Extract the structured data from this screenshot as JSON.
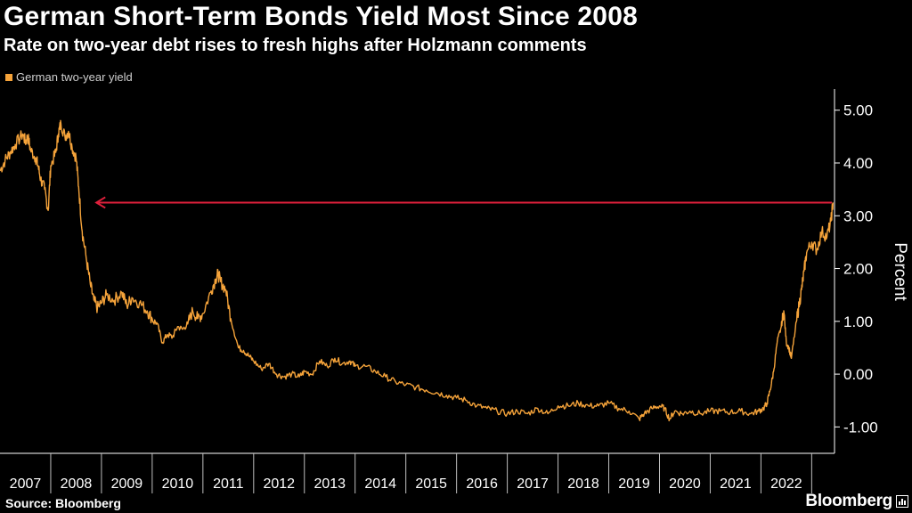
{
  "header": {
    "title": "German Short-Term Bonds Yield Most Since 2008",
    "subtitle": "Rate on two-year debt rises to fresh highs after Holzmann comments"
  },
  "footer": {
    "source": "Source: Bloomberg",
    "brand": "Bloomberg"
  },
  "colors": {
    "series": "#f5a33a",
    "arrow": "#e0203c",
    "axis": "#ffffff",
    "text": "#ffffff"
  },
  "chart_data": {
    "type": "line",
    "title": "German Short-Term Bonds Yield Most Since 2008",
    "subtitle": "Rate on two-year debt rises to fresh highs after Holzmann comments",
    "xlabel": "",
    "ylabel": "Percent",
    "ylim": [
      -1.5,
      5.4
    ],
    "xlim": [
      2007.0,
      2023.45
    ],
    "y_ticks": [
      5.0,
      4.0,
      3.0,
      2.0,
      1.0,
      0.0,
      -1.0
    ],
    "y_tick_labels": [
      "5.00",
      "4.00",
      "3.00",
      "2.00",
      "1.00",
      "0.00",
      "-1.00"
    ],
    "x_tick_labels": [
      "2007",
      "2008",
      "2009",
      "2010",
      "2011",
      "2012",
      "2013",
      "2014",
      "2015",
      "2016",
      "2017",
      "2018",
      "2019",
      "2020",
      "2021",
      "2022"
    ],
    "legend": {
      "position": "top-left",
      "entries": [
        "German two-year yield"
      ]
    },
    "annotations": [
      {
        "type": "arrow",
        "from": [
          2023.4,
          3.25
        ],
        "to": [
          2008.9,
          3.25
        ],
        "description": "Current level back to 2008 high"
      }
    ],
    "series": [
      {
        "name": "German two-year yield",
        "x": [
          2007.0,
          2007.1,
          2007.2,
          2007.3,
          2007.45,
          2007.5,
          2007.55,
          2007.6,
          2007.7,
          2007.75,
          2007.8,
          2007.88,
          2007.95,
          2008.0,
          2008.1,
          2008.15,
          2008.2,
          2008.28,
          2008.35,
          2008.42,
          2008.5,
          2008.55,
          2008.62,
          2008.7,
          2008.78,
          2008.85,
          2008.92,
          2009.0,
          2009.1,
          2009.25,
          2009.4,
          2009.5,
          2009.6,
          2009.75,
          2009.9,
          2010.0,
          2010.1,
          2010.2,
          2010.3,
          2010.4,
          2010.5,
          2010.6,
          2010.7,
          2010.8,
          2010.9,
          2011.0,
          2011.15,
          2011.25,
          2011.3,
          2011.35,
          2011.45,
          2011.55,
          2011.7,
          2011.8,
          2011.9,
          2012.0,
          2012.15,
          2012.3,
          2012.45,
          2012.6,
          2012.75,
          2012.9,
          2013.0,
          2013.15,
          2013.3,
          2013.45,
          2013.6,
          2013.75,
          2013.9,
          2014.0,
          2014.2,
          2014.4,
          2014.6,
          2014.8,
          2015.0,
          2015.2,
          2015.4,
          2015.6,
          2015.8,
          2016.0,
          2016.2,
          2016.4,
          2016.6,
          2016.8,
          2017.0,
          2017.2,
          2017.4,
          2017.6,
          2017.8,
          2018.0,
          2018.2,
          2018.4,
          2018.6,
          2018.8,
          2019.0,
          2019.2,
          2019.4,
          2019.6,
          2019.7,
          2019.85,
          2020.0,
          2020.1,
          2020.2,
          2020.3,
          2020.45,
          2020.6,
          2020.8,
          2021.0,
          2021.2,
          2021.4,
          2021.6,
          2021.8,
          2021.95,
          2022.05,
          2022.12,
          2022.18,
          2022.25,
          2022.32,
          2022.4,
          2022.45,
          2022.5,
          2022.55,
          2022.6,
          2022.7,
          2022.75,
          2022.8,
          2022.85,
          2022.9,
          2023.0,
          2023.1,
          2023.2,
          2023.3,
          2023.38,
          2023.42
        ],
        "values": [
          3.85,
          4.05,
          4.2,
          4.35,
          4.55,
          4.4,
          4.5,
          4.25,
          4.1,
          3.95,
          3.7,
          3.5,
          3.1,
          3.95,
          4.2,
          4.55,
          4.75,
          4.5,
          4.6,
          4.3,
          4.1,
          3.55,
          2.7,
          2.2,
          1.7,
          1.4,
          1.25,
          1.35,
          1.5,
          1.4,
          1.55,
          1.3,
          1.45,
          1.35,
          1.2,
          1.05,
          0.95,
          0.6,
          0.75,
          0.7,
          0.9,
          0.85,
          0.95,
          1.2,
          1.05,
          1.15,
          1.55,
          1.8,
          1.9,
          1.75,
          1.6,
          1.05,
          0.5,
          0.45,
          0.35,
          0.25,
          0.1,
          0.2,
          0.0,
          -0.05,
          0.0,
          -0.05,
          0.05,
          0.0,
          0.25,
          0.15,
          0.3,
          0.2,
          0.25,
          0.15,
          0.15,
          0.05,
          -0.05,
          -0.15,
          -0.2,
          -0.25,
          -0.3,
          -0.35,
          -0.4,
          -0.45,
          -0.5,
          -0.6,
          -0.65,
          -0.7,
          -0.75,
          -0.7,
          -0.75,
          -0.65,
          -0.75,
          -0.6,
          -0.6,
          -0.55,
          -0.6,
          -0.6,
          -0.55,
          -0.65,
          -0.7,
          -0.85,
          -0.75,
          -0.65,
          -0.6,
          -0.65,
          -0.85,
          -0.7,
          -0.75,
          -0.7,
          -0.75,
          -0.7,
          -0.7,
          -0.72,
          -0.7,
          -0.75,
          -0.7,
          -0.65,
          -0.55,
          -0.3,
          0.05,
          0.6,
          0.9,
          1.2,
          0.6,
          0.5,
          0.3,
          1.0,
          1.3,
          1.6,
          1.95,
          2.3,
          2.5,
          2.35,
          2.7,
          2.6,
          2.9,
          3.25
        ]
      }
    ]
  }
}
